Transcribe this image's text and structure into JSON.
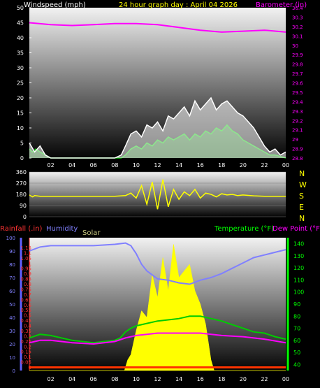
{
  "chart_data": [
    {
      "type": "line",
      "title": "24 hour graph day : April 04 2026",
      "ylabel_left": "Windspeed (mph)",
      "ylabel_right": "Barometer (in)",
      "x_ticks": [
        "02",
        "04",
        "06",
        "08",
        "10",
        "12",
        "14",
        "16",
        "18",
        "20",
        "22",
        "00"
      ],
      "left_ticks": [
        0,
        5,
        10,
        15,
        20,
        25,
        30,
        35,
        40,
        45,
        50
      ],
      "right_ticks": [
        "28.8",
        "28.9",
        "29",
        "29.1",
        "29.2",
        "29.3",
        "29.4",
        "29.5",
        "29.6",
        "29.7",
        "29.8",
        "29.9",
        "30",
        "30.1",
        "30.2",
        "30.3",
        "30.4"
      ],
      "ylim_left": [
        0,
        50
      ],
      "ylim_right": [
        28.8,
        30.4
      ],
      "series": [
        {
          "color": "#ff00ff",
          "x": [
            0,
            2,
            4,
            6,
            8,
            10,
            12,
            14,
            16,
            18,
            20,
            22,
            24
          ],
          "values": [
            30.24,
            30.22,
            30.21,
            30.22,
            30.23,
            30.23,
            30.22,
            30.19,
            30.16,
            30.14,
            30.15,
            30.16,
            30.14
          ]
        },
        {
          "color": "#00cc00",
          "x": [
            0,
            0.3,
            0.6,
            1,
            1.5,
            2,
            4,
            6,
            8,
            8.6,
            9,
            9.5,
            10,
            10.5,
            11,
            11.5,
            12,
            12.5,
            13,
            13.5,
            14,
            14.5,
            15,
            15.5,
            16,
            16.5,
            17,
            17.5,
            18,
            18.5,
            19,
            19.5,
            20,
            20.5,
            21,
            21.5,
            22,
            22.5,
            23,
            24
          ],
          "values": [
            3,
            2,
            3,
            2,
            1,
            0,
            0,
            0,
            0,
            0,
            1,
            3,
            4,
            3,
            5,
            4,
            6,
            5,
            7,
            6,
            7,
            8,
            6,
            8,
            7,
            9,
            8,
            10,
            9,
            11,
            9,
            8,
            6,
            5,
            4,
            3,
            2,
            1,
            1,
            0
          ]
        },
        {
          "color": "#ffffff",
          "x": [
            0,
            0.5,
            1,
            1.5,
            2,
            4,
            6,
            8,
            8.6,
            9,
            9.5,
            10,
            10.5,
            11,
            11.5,
            12,
            12.5,
            13,
            13.5,
            14,
            14.5,
            15,
            15.5,
            16,
            16.5,
            17,
            17.5,
            18,
            18.5,
            19,
            19.5,
            20,
            20.5,
            21,
            21.5,
            22,
            22.5,
            23,
            23.5,
            24
          ],
          "values": [
            5,
            2,
            4,
            1,
            0,
            0,
            0,
            0,
            1,
            4,
            8,
            9,
            7,
            11,
            10,
            12,
            9,
            14,
            13,
            15,
            17,
            14,
            19,
            16,
            18,
            20,
            16,
            18,
            19,
            17,
            15,
            14,
            12,
            10,
            7,
            4,
            2,
            3,
            1,
            2
          ]
        }
      ]
    },
    {
      "type": "line",
      "ylabel_right": [
        "N",
        "W",
        "S",
        "E",
        "N"
      ],
      "left_ticks": [
        0,
        90,
        180,
        270,
        360
      ],
      "ylim": [
        0,
        360
      ],
      "series": [
        {
          "color": "#ffff00",
          "x": [
            0,
            0.3,
            0.5,
            1,
            2,
            4,
            6,
            8,
            9,
            9.5,
            10,
            10.5,
            11,
            11.5,
            12,
            12.5,
            13,
            13.5,
            14,
            14.5,
            15,
            15.5,
            16,
            16.5,
            17,
            17.5,
            18,
            18.5,
            19,
            19.5,
            20,
            21,
            22,
            23,
            24
          ],
          "values": [
            175,
            160,
            170,
            165,
            165,
            165,
            165,
            165,
            170,
            190,
            150,
            250,
            100,
            280,
            60,
            300,
            80,
            220,
            140,
            200,
            170,
            220,
            150,
            190,
            180,
            160,
            185,
            175,
            180,
            170,
            175,
            168,
            165,
            165,
            165
          ]
        }
      ]
    },
    {
      "type": "line",
      "labels_top": {
        "rainfall": "Rainfall (.in)",
        "humidity": "Humidity",
        "solar": "Solar",
        "temperature": "Temperature (°F)",
        "dewpoint": "Dew Point (°F)"
      },
      "left_ticks_rain": [
        "0",
        "0.05",
        "0.1",
        "0.15",
        "0.2",
        "0.25",
        "0.3",
        "0.35",
        "0.4",
        "0.45",
        "0.5",
        "0.55",
        "0.6",
        "0.65",
        "0.7",
        "0.75",
        "0.8",
        "0.85",
        "0.9",
        "0.95",
        "1",
        "1.05",
        "1.1",
        "1.15"
      ],
      "left_ticks_humidity": [
        0,
        10,
        20,
        30,
        40,
        50,
        60,
        70,
        80,
        90,
        100
      ],
      "right_ticks_temp": [
        40,
        50,
        60,
        70,
        80,
        90,
        100,
        110,
        120,
        130,
        140
      ],
      "ylim_humidity": [
        0,
        100
      ],
      "ylim_temp": [
        35,
        145
      ],
      "series": [
        {
          "name": "Humidity",
          "color": "#8080ff",
          "x": [
            0,
            1,
            2,
            4,
            6,
            8,
            9,
            9.5,
            10,
            10.5,
            11,
            11.5,
            12,
            13,
            14,
            15,
            16,
            17,
            18,
            19,
            20,
            21,
            22,
            23,
            24
          ],
          "values": [
            90,
            93,
            94,
            94,
            94,
            95,
            96,
            94,
            88,
            80,
            75,
            72,
            69,
            68,
            66,
            65,
            68,
            70,
            73,
            77,
            81,
            85,
            87,
            89,
            91
          ]
        },
        {
          "name": "Temperature",
          "color": "#00cc00",
          "x": [
            0,
            1,
            2,
            4,
            6,
            7,
            8,
            8.5,
            9,
            9.5,
            10,
            11,
            12,
            13,
            14,
            15,
            16,
            17,
            18,
            19,
            20,
            21,
            22,
            23,
            24
          ],
          "values": [
            62,
            65,
            64,
            60,
            58,
            59,
            60,
            62,
            67,
            70,
            72,
            74,
            76,
            77,
            78,
            80,
            80,
            78,
            76,
            73,
            70,
            67,
            66,
            63,
            61
          ]
        },
        {
          "name": "Dew Point",
          "color": "#ff00ff",
          "x": [
            0,
            1,
            2,
            4,
            6,
            8,
            9,
            10,
            11,
            12,
            14,
            16,
            18,
            20,
            22,
            24
          ],
          "values": [
            58,
            60,
            60,
            58,
            57,
            59,
            62,
            64,
            65,
            66,
            66,
            66,
            64,
            63,
            61,
            58
          ]
        },
        {
          "name": "Solar",
          "color": "#ffff00",
          "x": [
            0,
            8.9,
            9.2,
            9.5,
            10,
            10.5,
            11,
            11.5,
            12,
            12.5,
            13,
            13.5,
            14,
            14.5,
            15,
            15.5,
            16,
            16.5,
            17,
            17.3,
            24
          ],
          "values": [
            0,
            0,
            8,
            12,
            30,
            45,
            40,
            72,
            55,
            85,
            60,
            95,
            70,
            75,
            80,
            60,
            50,
            35,
            8,
            0,
            0
          ]
        }
      ]
    }
  ]
}
